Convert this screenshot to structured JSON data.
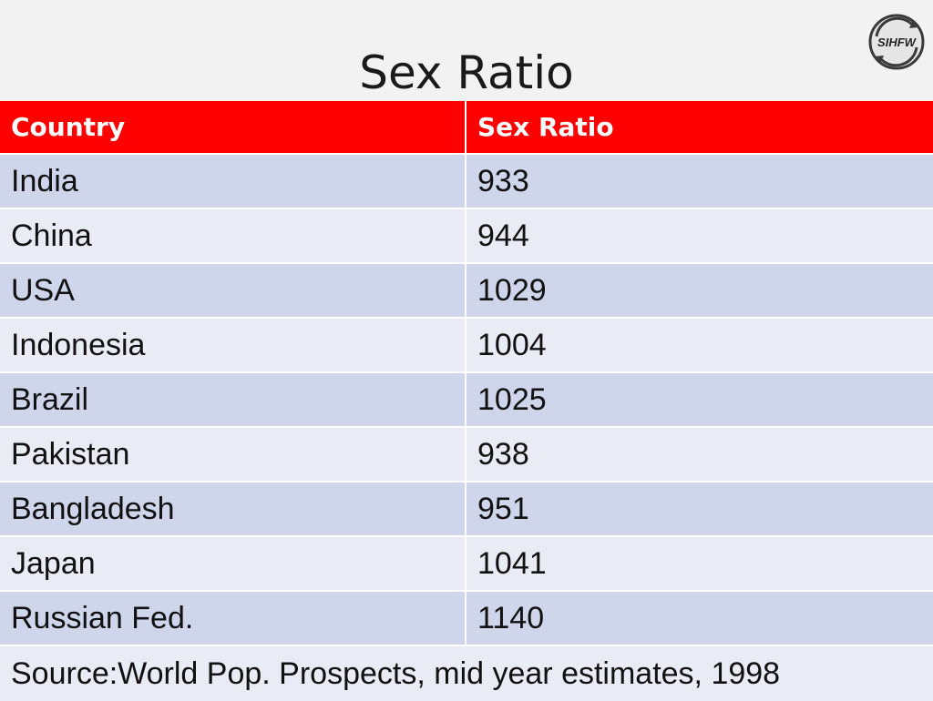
{
  "slide": {
    "title": "Sex Ratio",
    "logo_text": "SIHFW"
  },
  "table": {
    "headers": [
      "Country",
      "Sex Ratio"
    ],
    "rows": [
      [
        "India",
        "933"
      ],
      [
        "China",
        "944"
      ],
      [
        "USA",
        "1029"
      ],
      [
        "Indonesia",
        "1004"
      ],
      [
        "Brazil",
        "1025"
      ],
      [
        "Pakistan",
        "938"
      ],
      [
        "Bangladesh",
        "951"
      ],
      [
        "Japan",
        "1041"
      ],
      [
        "Russian Fed.",
        "1140"
      ]
    ],
    "source": "Source:World Pop. Prospects, mid year estimates, 1998"
  },
  "colors": {
    "header_bg": "#ff0000",
    "row_band_dark": "#cfd5ea",
    "row_band_light": "#e9ebf5"
  }
}
